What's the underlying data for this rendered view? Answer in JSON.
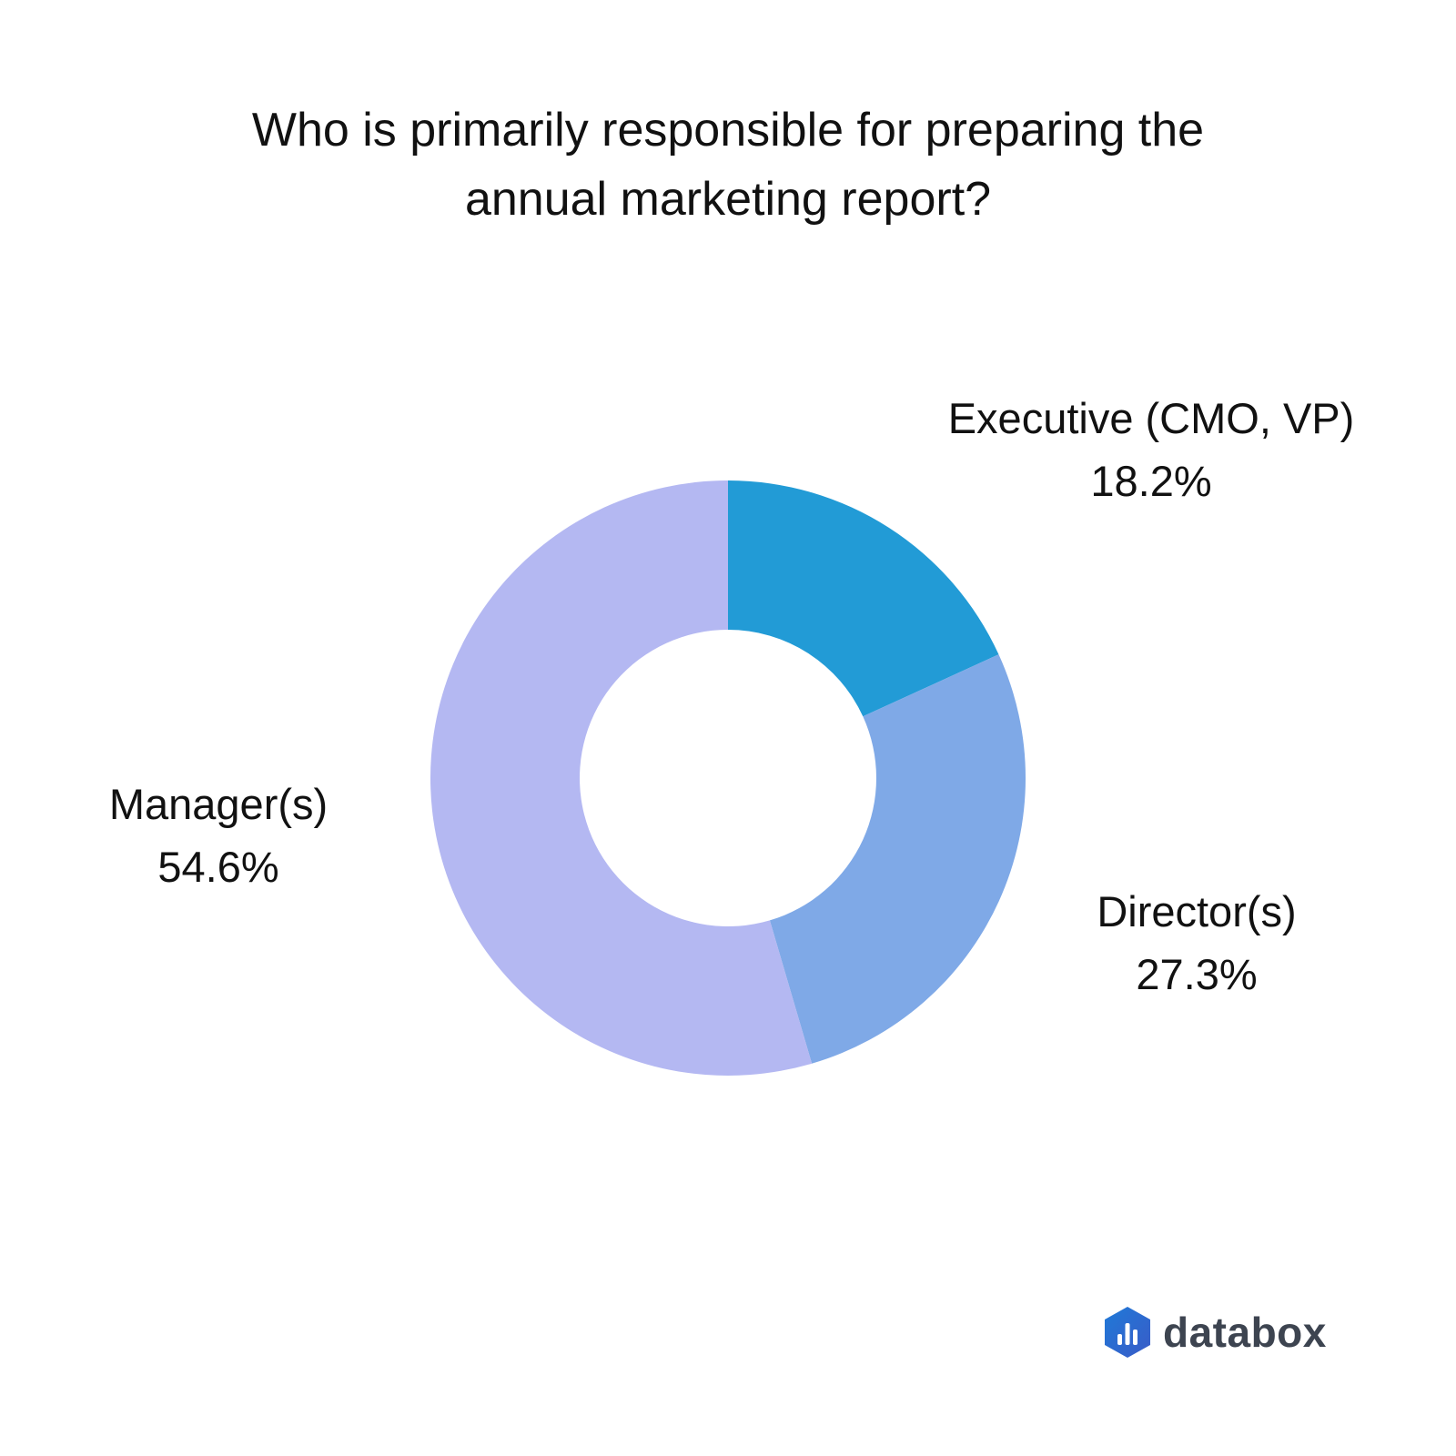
{
  "title_lines": [
    "Who is primarily responsible for preparing the",
    "annual marketing report?"
  ],
  "chart_data": {
    "type": "pie",
    "donut": true,
    "start": "12 o'clock",
    "direction": "clockwise",
    "slices": [
      {
        "label": "Executive (CMO, VP)",
        "value": 18.2,
        "value_label": "18.2%",
        "color": "#229bd6"
      },
      {
        "label": "Director(s)",
        "value": 27.3,
        "value_label": "27.3%",
        "color": "#7fa9e7"
      },
      {
        "label": "Manager(s)",
        "value": 54.6,
        "value_label": "54.6%",
        "color": "#b4b8f2"
      }
    ]
  },
  "brand": {
    "name": "databox",
    "logo_colors": [
      "#1f7ad8",
      "#3a5bc7"
    ]
  }
}
